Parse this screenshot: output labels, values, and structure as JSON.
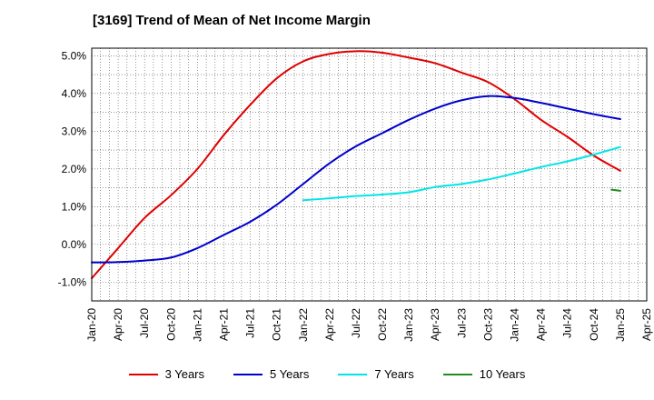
{
  "chart_data": {
    "type": "line",
    "title": "[3169]  Trend of Mean of Net Income Margin",
    "xlabel": "",
    "ylabel": "",
    "x_ticks": [
      "Jan-20",
      "Apr-20",
      "Jul-20",
      "Oct-20",
      "Jan-21",
      "Apr-21",
      "Jul-21",
      "Oct-21",
      "Jan-22",
      "Apr-22",
      "Jul-22",
      "Oct-22",
      "Jan-23",
      "Apr-23",
      "Jul-23",
      "Oct-23",
      "Jan-24",
      "Apr-24",
      "Jul-24",
      "Oct-24",
      "Jan-25",
      "Apr-25"
    ],
    "y_ticks": [
      "-1.0%",
      "0.0%",
      "1.0%",
      "2.0%",
      "3.0%",
      "4.0%",
      "5.0%"
    ],
    "ylim": [
      -1.5,
      5.2
    ],
    "grid": true,
    "legend_position": "bottom",
    "series": [
      {
        "name": "3 Years",
        "color": "#e00000",
        "x": [
          "Jan-20",
          "Apr-20",
          "Jul-20",
          "Oct-20",
          "Jan-21",
          "Apr-21",
          "Jul-21",
          "Oct-21",
          "Jan-22",
          "Apr-22",
          "Jul-22",
          "Oct-22",
          "Jan-23",
          "Apr-23",
          "Jul-23",
          "Oct-23",
          "Jan-24",
          "Apr-24",
          "Jul-24",
          "Oct-24",
          "Jan-25"
        ],
        "values": [
          -0.9,
          -0.1,
          0.7,
          1.3,
          2.0,
          2.9,
          3.7,
          4.4,
          4.85,
          5.05,
          5.12,
          5.08,
          4.95,
          4.8,
          4.55,
          4.3,
          3.85,
          3.3,
          2.85,
          2.35,
          1.95
        ]
      },
      {
        "name": "5 Years",
        "color": "#0000cc",
        "x": [
          "Jan-20",
          "Apr-20",
          "Jul-20",
          "Oct-20",
          "Jan-21",
          "Apr-21",
          "Jul-21",
          "Oct-21",
          "Jan-22",
          "Apr-22",
          "Jul-22",
          "Oct-22",
          "Jan-23",
          "Apr-23",
          "Jul-23",
          "Oct-23",
          "Jan-24",
          "Apr-24",
          "Jul-24",
          "Oct-24",
          "Jan-25"
        ],
        "values": [
          -0.48,
          -0.47,
          -0.43,
          -0.35,
          -0.1,
          0.25,
          0.6,
          1.05,
          1.6,
          2.15,
          2.6,
          2.95,
          3.3,
          3.6,
          3.82,
          3.93,
          3.88,
          3.75,
          3.6,
          3.45,
          3.32
        ]
      },
      {
        "name": "7 Years",
        "color": "#00e5e5",
        "x": [
          "Jan-22",
          "Apr-22",
          "Jul-22",
          "Oct-22",
          "Jan-23",
          "Apr-23",
          "Jul-23",
          "Oct-23",
          "Jan-24",
          "Apr-24",
          "Jul-24",
          "Oct-24",
          "Jan-25"
        ],
        "values": [
          1.17,
          1.22,
          1.28,
          1.32,
          1.38,
          1.52,
          1.6,
          1.72,
          1.88,
          2.05,
          2.2,
          2.38,
          2.58
        ]
      },
      {
        "name": "10 Years",
        "color": "#228b22",
        "x": [
          "Dec-24",
          "Jan-25"
        ],
        "values": [
          1.45,
          1.42
        ]
      }
    ]
  }
}
